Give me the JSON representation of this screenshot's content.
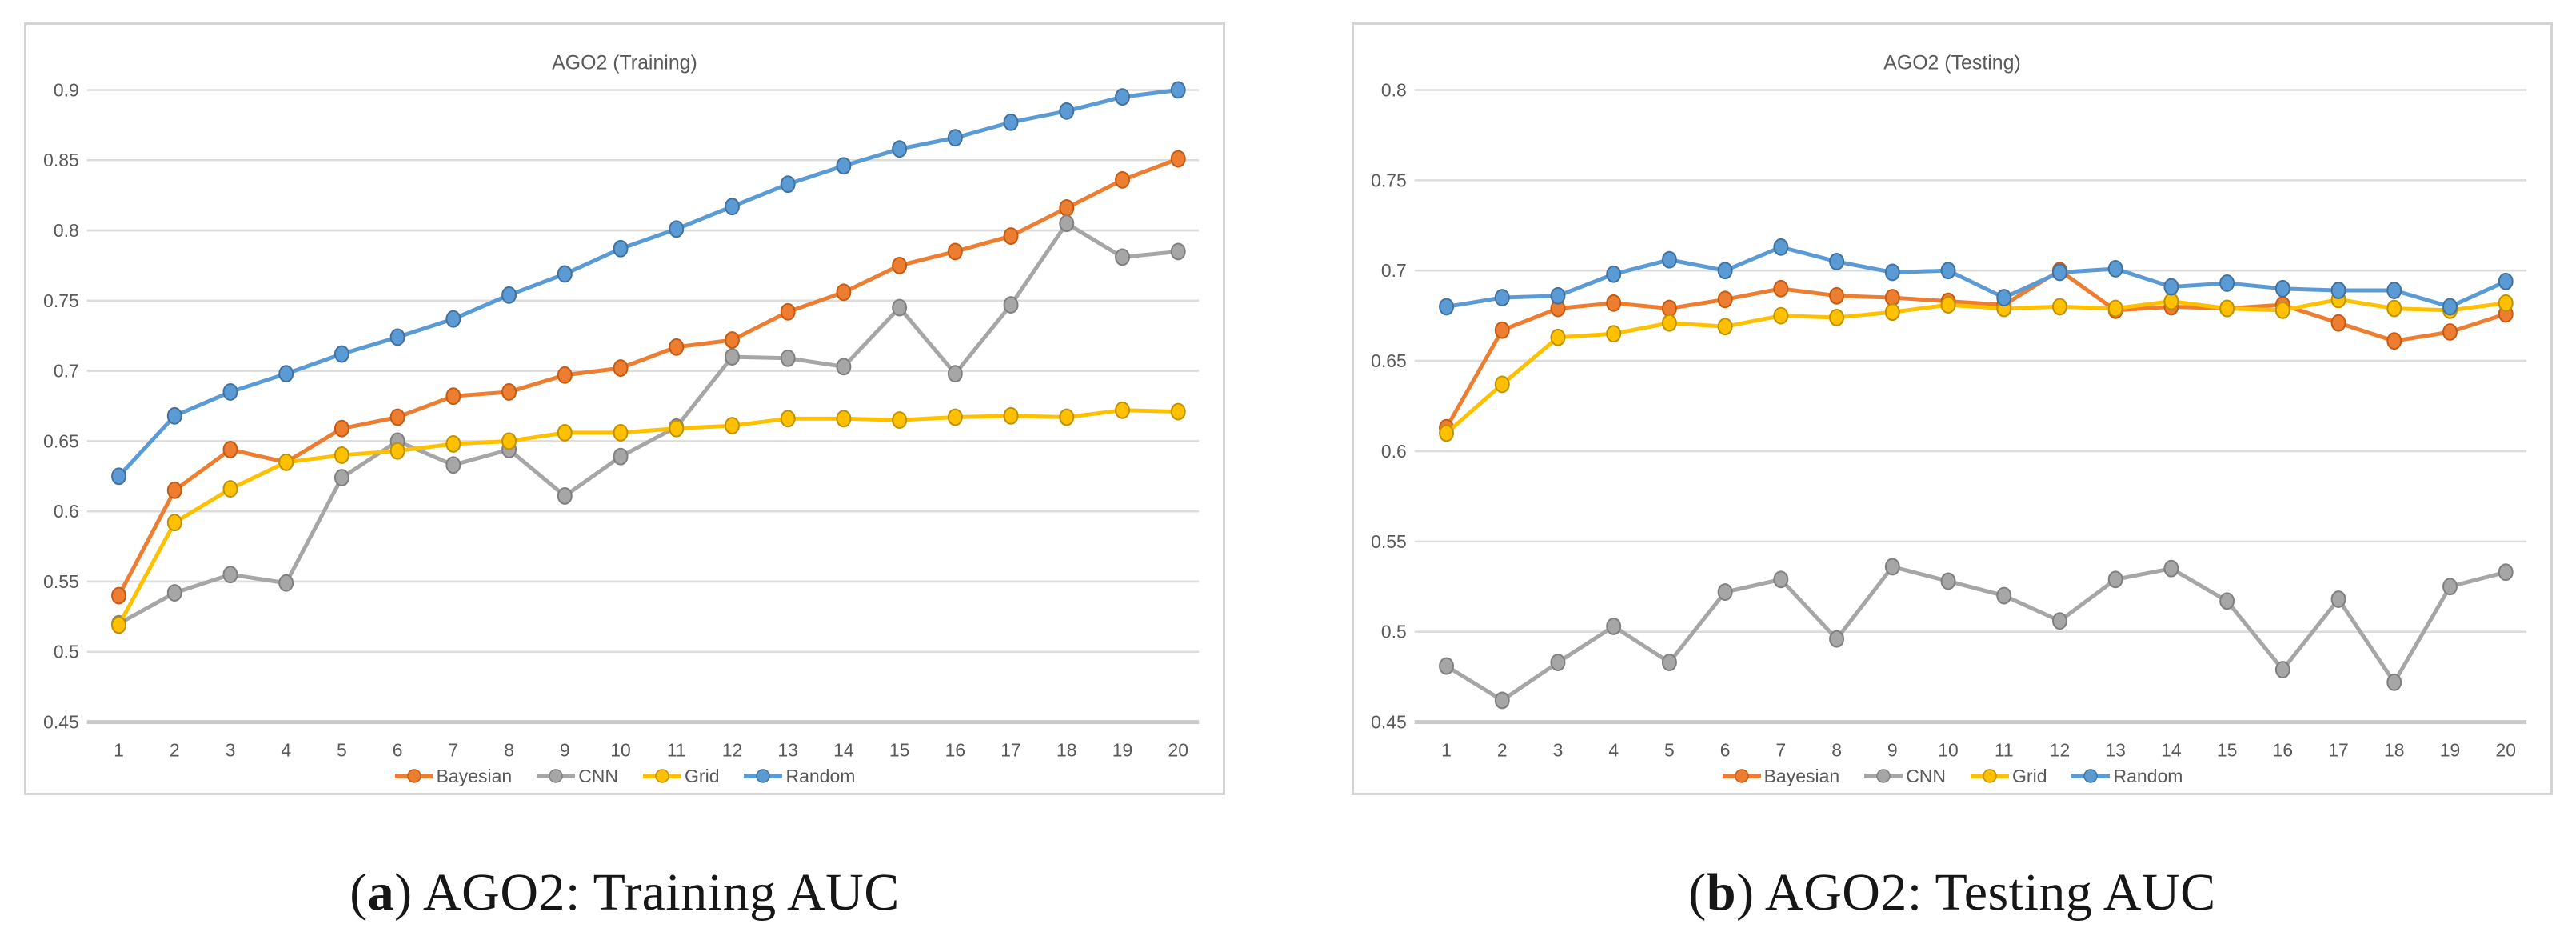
{
  "figure": {
    "captions": {
      "a": {
        "pre": "(",
        "letter": "a",
        "post": ") AGO2: Training AUC"
      },
      "b": {
        "pre": "(",
        "letter": "b",
        "post": ") AGO2: Testing AUC"
      }
    }
  },
  "colors": {
    "bayesian": "#ED7D31",
    "bayesian_dark": "#C55A11",
    "cnn": "#A6A6A6",
    "cnn_dark": "#7F7F7F",
    "grid": "#FFC000",
    "grid_dark": "#BF9000",
    "random": "#5B9BD5",
    "random_dark": "#41719C",
    "gridline": "#DCDCDC",
    "axisline": "#C9C9C9",
    "tick_text": "#595959",
    "title_text": "#595959",
    "panel_border": "#D4D4D4",
    "caption_text": "#161616"
  },
  "chart_data": [
    {
      "type": "line",
      "title": "AGO2 (Training)",
      "x_categories": [
        "1",
        "2",
        "3",
        "4",
        "5",
        "6",
        "7",
        "8",
        "9",
        "10",
        "11",
        "12",
        "13",
        "14",
        "15",
        "16",
        "17",
        "18",
        "19",
        "20"
      ],
      "ylim": [
        0.45,
        0.9
      ],
      "yticks": [
        "0.9",
        "0.85",
        "0.8",
        "0.75",
        "0.7",
        "0.65",
        "0.6",
        "0.55",
        "0.5",
        "0.45"
      ],
      "grid": true,
      "legend_position": "bottom",
      "series": [
        {
          "name": "Bayesian",
          "color_key": "bayesian",
          "values": [
            0.54,
            0.615,
            0.644,
            0.635,
            0.659,
            0.667,
            0.682,
            0.685,
            0.697,
            0.702,
            0.717,
            0.722,
            0.742,
            0.756,
            0.775,
            0.785,
            0.796,
            0.816,
            0.836,
            0.851
          ]
        },
        {
          "name": "CNN",
          "color_key": "cnn",
          "values": [
            0.52,
            0.542,
            0.555,
            0.549,
            0.624,
            0.65,
            0.633,
            0.644,
            0.611,
            0.639,
            0.66,
            0.71,
            0.709,
            0.703,
            0.745,
            0.698,
            0.747,
            0.805,
            0.781,
            0.785
          ]
        },
        {
          "name": "Grid",
          "color_key": "grid",
          "values": [
            0.519,
            0.592,
            0.616,
            0.635,
            0.64,
            0.643,
            0.648,
            0.65,
            0.656,
            0.656,
            0.659,
            0.661,
            0.666,
            0.666,
            0.665,
            0.667,
            0.668,
            0.667,
            0.672,
            0.671
          ]
        },
        {
          "name": "Random",
          "color_key": "random",
          "values": [
            0.625,
            0.668,
            0.685,
            0.698,
            0.712,
            0.724,
            0.737,
            0.754,
            0.769,
            0.787,
            0.801,
            0.817,
            0.833,
            0.846,
            0.858,
            0.866,
            0.877,
            0.885,
            0.895,
            0.9
          ]
        }
      ]
    },
    {
      "type": "line",
      "title": "AGO2 (Testing)",
      "x_categories": [
        "1",
        "2",
        "3",
        "4",
        "5",
        "6",
        "7",
        "8",
        "9",
        "10",
        "11",
        "12",
        "13",
        "14",
        "15",
        "16",
        "17",
        "18",
        "19",
        "20"
      ],
      "ylim": [
        0.45,
        0.8
      ],
      "yticks": [
        "0.8",
        "0.75",
        "0.7",
        "0.65",
        "0.6",
        "0.55",
        "0.5",
        "0.45"
      ],
      "grid": true,
      "legend_position": "bottom",
      "series": [
        {
          "name": "Bayesian",
          "color_key": "bayesian",
          "values": [
            0.613,
            0.667,
            0.679,
            0.682,
            0.679,
            0.684,
            0.69,
            0.686,
            0.685,
            0.683,
            0.681,
            0.7,
            0.678,
            0.68,
            0.679,
            0.681,
            0.671,
            0.661,
            0.666,
            0.676
          ]
        },
        {
          "name": "CNN",
          "color_key": "cnn",
          "values": [
            0.481,
            0.462,
            0.483,
            0.503,
            0.483,
            0.522,
            0.529,
            0.496,
            0.536,
            0.528,
            0.52,
            0.506,
            0.529,
            0.535,
            0.517,
            0.479,
            0.518,
            0.472,
            0.525,
            0.533
          ]
        },
        {
          "name": "Grid",
          "color_key": "grid",
          "values": [
            0.61,
            0.637,
            0.663,
            0.665,
            0.671,
            0.669,
            0.675,
            0.674,
            0.677,
            0.681,
            0.679,
            0.68,
            0.679,
            0.683,
            0.679,
            0.678,
            0.684,
            0.679,
            0.678,
            0.682
          ]
        },
        {
          "name": "Random",
          "color_key": "random",
          "values": [
            0.68,
            0.685,
            0.686,
            0.698,
            0.706,
            0.7,
            0.713,
            0.705,
            0.699,
            0.7,
            0.685,
            0.699,
            0.701,
            0.691,
            0.693,
            0.69,
            0.689,
            0.689,
            0.68,
            0.694
          ]
        }
      ]
    }
  ]
}
